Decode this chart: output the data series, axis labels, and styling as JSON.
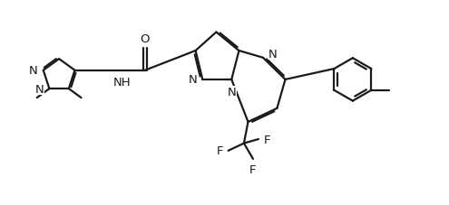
{
  "bg_color": "#ffffff",
  "line_color": "#1a1a1a",
  "line_width": 1.6,
  "font_size": 9.5,
  "figsize": [
    4.95,
    2.28
  ],
  "dpi": 100,
  "xlim": [
    0,
    10.5
  ],
  "ylim": [
    -1.2,
    3.8
  ]
}
